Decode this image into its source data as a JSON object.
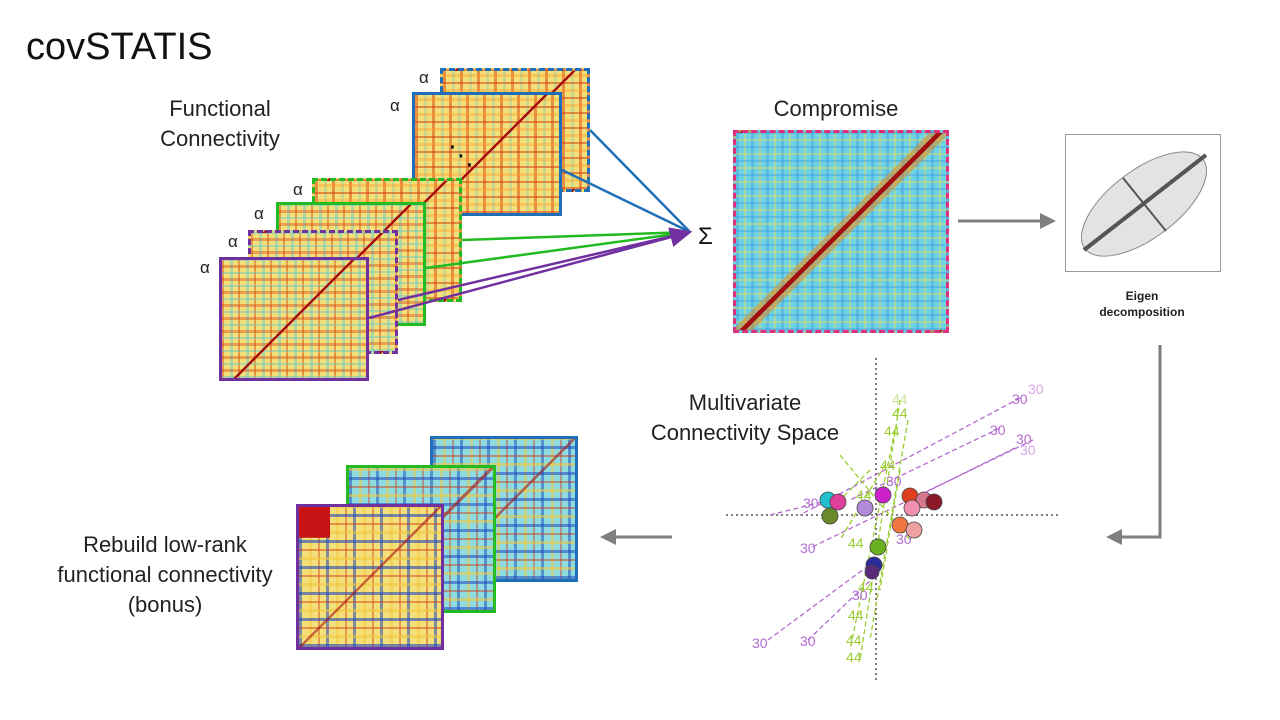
{
  "title": "covSTATIS",
  "labels": {
    "functional_connectivity": [
      "Functional",
      "Connectivity"
    ],
    "compromise": "Compromise",
    "eigen": [
      "Eigen",
      "decomposition"
    ],
    "multivariate": [
      "Multivariate",
      "Connectivity Space"
    ],
    "rebuild": [
      "Rebuild low-rank",
      "functional connectivity",
      "(bonus)"
    ]
  },
  "alpha_symbol": "α",
  "sum_symbol": "Σ",
  "ellipsis": "⋱",
  "scatter_numbers": {
    "a": "30",
    "b": "44"
  },
  "colors": {
    "blue": "#1f6fb8",
    "green": "#22bb22",
    "purple": "#7030a0",
    "pink": "#e0307a",
    "arrow_gray": "#7f7f7f",
    "label_purple": "#b36ad0",
    "label_green": "#9acd32"
  }
}
